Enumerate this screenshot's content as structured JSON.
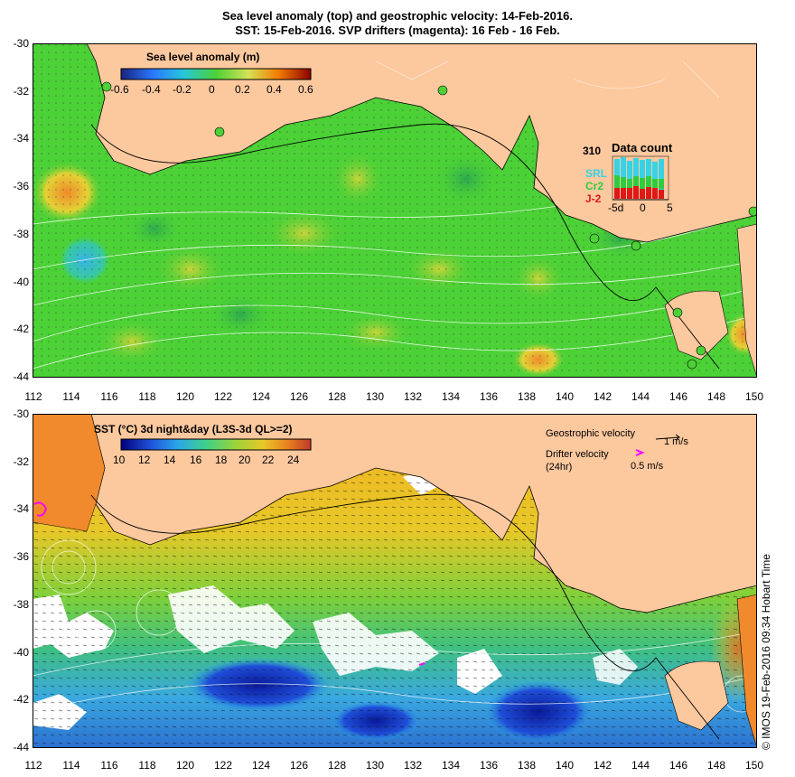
{
  "title": {
    "line1": "Sea level anomaly (top) and geostrophic velocity: 14-Feb-2016.",
    "line2": "SST: 15-Feb-2016. SVP drifters (magenta): 16 Feb - 16 Feb."
  },
  "colors": {
    "land": "#fcc89e",
    "sla_low": "#1a237e",
    "sla_mid": "#4cd137",
    "sla_high": "#8b0000",
    "sst_low": "#00007a",
    "sst_high": "#c0392b",
    "contour": "#ffffff",
    "drifter": "#ff00ff"
  },
  "axes": {
    "lat_ticks": [
      "-30",
      "-32",
      "-34",
      "-36",
      "-38",
      "-40",
      "-42",
      "-44"
    ],
    "lon_ticks": [
      "112",
      "114",
      "116",
      "118",
      "120",
      "122",
      "124",
      "126",
      "128",
      "130",
      "132",
      "134",
      "136",
      "138",
      "140",
      "142",
      "144",
      "146",
      "148",
      "150"
    ]
  },
  "sla_panel": {
    "colorbar_title": "Sea level anomaly (m)",
    "colorbar_ticks": [
      "-0.6",
      "-0.4",
      "-0.2",
      "0",
      "0.2",
      "0.4",
      "0.6"
    ],
    "data_count": {
      "title": "Data count",
      "max": "310",
      "series": [
        "SRL",
        "Cr2",
        "J-2"
      ],
      "xticks": [
        "-5d",
        "0",
        "5"
      ]
    }
  },
  "sst_panel": {
    "colorbar_title": "SST (°C) 3d night&day (L3S-3d QL>=2)",
    "colorbar_ticks": [
      "10",
      "12",
      "14",
      "16",
      "18",
      "20",
      "22",
      "24"
    ],
    "geo_velocity_label": "Geostrophic velocity",
    "geo_velocity_scale": "1 m/s",
    "drifter_label": "Drifter velocity",
    "drifter_sub": "(24hr)",
    "drifter_scale": "0.5 m/s"
  },
  "credit": "© IMOS 19-Feb-2016 09:34 Hobart Time"
}
